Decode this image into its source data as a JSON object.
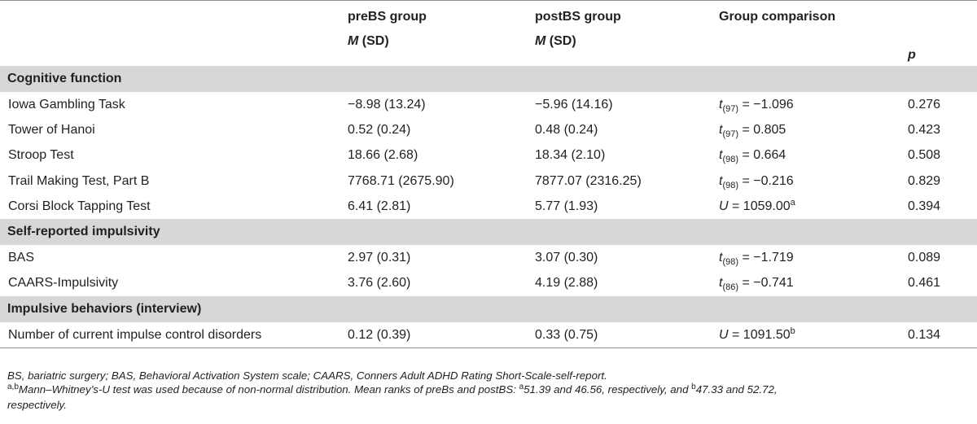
{
  "header": {
    "col_pre_title": "preBS group",
    "col_post_title": "postBS group",
    "col_comp_title": "Group comparison",
    "col_pre_sub_m": "M",
    "col_pre_sub_sd": " (SD)",
    "col_post_sub_m": "M",
    "col_post_sub_sd": " (SD)",
    "col_p": "p"
  },
  "sections": [
    {
      "title": "Cognitive function",
      "rows": [
        {
          "name": "Iowa Gambling Task",
          "pre": "−8.98 (13.24)",
          "post": "−5.96 (14.16)",
          "stat": "t",
          "df": "(97)",
          "val": " = −1.096",
          "sup": "",
          "p": "0.276"
        },
        {
          "name": "Tower of Hanoi",
          "pre": "0.52 (0.24)",
          "post": "0.48 (0.24)",
          "stat": "t",
          "df": "(97)",
          "val": " = 0.805",
          "sup": "",
          "p": "0.423"
        },
        {
          "name": "Stroop Test",
          "pre": "18.66 (2.68)",
          "post": "18.34 (2.10)",
          "stat": "t",
          "df": "(98)",
          "val": " = 0.664",
          "sup": "",
          "p": "0.508"
        },
        {
          "name": "Trail Making Test, Part B",
          "pre": "7768.71 (2675.90)",
          "post": "7877.07 (2316.25)",
          "stat": "t",
          "df": "(98)",
          "val": " = −0.216",
          "sup": "",
          "p": "0.829"
        },
        {
          "name": "Corsi Block Tapping Test",
          "pre": "6.41 (2.81)",
          "post": "5.77 (1.93)",
          "stat": "U",
          "df": "",
          "val": " = 1059.00",
          "sup": "a",
          "p": "0.394"
        }
      ]
    },
    {
      "title": "Self-reported impulsivity",
      "rows": [
        {
          "name": "BAS",
          "pre": "2.97 (0.31)",
          "post": "3.07 (0.30)",
          "stat": "t",
          "df": "(98)",
          "val": " = −1.719",
          "sup": "",
          "p": "0.089"
        },
        {
          "name": "CAARS-Impulsivity",
          "pre": "3.76 (2.60)",
          "post": "4.19 (2.88)",
          "stat": "t",
          "df": "(86)",
          "val": " = −0.741",
          "sup": "",
          "p": "0.461"
        }
      ]
    },
    {
      "title": "Impulsive behaviors (interview)",
      "rows": [
        {
          "name": "Number of current impulse control disorders",
          "pre": "0.12 (0.39)",
          "post": "0.33 (0.75)",
          "stat": "U",
          "df": "",
          "val": " = 1091.50",
          "sup": "b",
          "p": "0.134"
        }
      ]
    }
  ],
  "notes": {
    "line1": "BS, bariatric surgery; BAS, Behavioral Activation System scale; CAARS, Conners Adult ADHD Rating Short-Scale-self-report.",
    "line2_sup": "a,b",
    "line2_text": "Mann–Whitney’s-U test was used because of non-normal distribution. Mean ranks of preBs and postBS: ",
    "line2_sup_a": "a",
    "line2_mid": "51.39 and 46.56, respectively, and ",
    "line2_sup_b": "b",
    "line2_end": "47.33 and 52.72,",
    "line3": "respectively."
  }
}
